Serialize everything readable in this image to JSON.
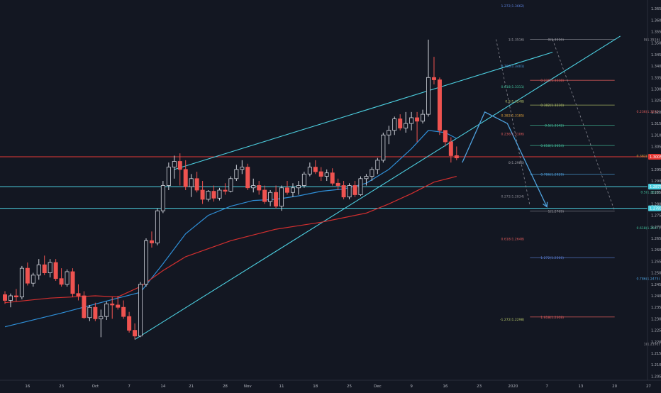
{
  "chart_data": {
    "type": "candlestick",
    "x_axis": {
      "labels": [
        "16",
        "23",
        "Oct",
        "7",
        "14",
        "21",
        "28",
        "Nov",
        "11",
        "18",
        "25",
        "Dec",
        "9",
        "16",
        "23",
        "2020",
        "7",
        "13",
        "20",
        "27"
      ]
    },
    "y_axis": {
      "range": [
        1.2045,
        1.3675
      ],
      "ticks": [
        "1.3650",
        "1.3600",
        "1.3550",
        "1.3500",
        "1.3450",
        "1.3400",
        "1.3350",
        "1.3300",
        "1.3250",
        "1.3200",
        "1.3150",
        "1.3100",
        "1.3050",
        "1.3000",
        "1.2950",
        "1.2900",
        "1.2850",
        "1.2800",
        "1.2750",
        "1.2700",
        "1.2650",
        "1.2600",
        "1.2550",
        "1.2500",
        "1.2450",
        "1.2400",
        "1.2350",
        "1.2300",
        "1.2250",
        "1.2200",
        "1.2150",
        "1.2100",
        "1.2050"
      ]
    },
    "price_badges": [
      {
        "value": 1.3005,
        "label": "1.3005",
        "color": "#e53935"
      },
      {
        "value": 1.2875,
        "label": "1.2875",
        "color": "#4dd0e1"
      },
      {
        "value": 1.2781,
        "label": "1.2781",
        "color": "#4dd0e1"
      }
    ],
    "horizontal_lines": [
      {
        "value": 1.3005,
        "color": "#e53935"
      },
      {
        "value": 1.2875,
        "color": "#4dd0e1"
      },
      {
        "value": 1.2781,
        "color": "#4dd0e1"
      }
    ],
    "candles": [
      [
        0,
        1.2405,
        1.242,
        1.2365,
        1.238
      ],
      [
        1,
        1.238,
        1.241,
        1.235,
        1.24
      ],
      [
        2,
        1.24,
        1.243,
        1.2375,
        1.2395
      ],
      [
        3,
        1.2395,
        1.253,
        1.2385,
        1.252
      ],
      [
        4,
        1.252,
        1.2545,
        1.2445,
        1.2455
      ],
      [
        5,
        1.2455,
        1.25,
        1.244,
        1.249
      ],
      [
        6,
        1.249,
        1.256,
        1.247,
        1.2535
      ],
      [
        7,
        1.2535,
        1.2575,
        1.249,
        1.25
      ],
      [
        8,
        1.25,
        1.256,
        1.248,
        1.2545
      ],
      [
        9,
        1.2545,
        1.256,
        1.2465,
        1.2475
      ],
      [
        10,
        1.2475,
        1.252,
        1.244,
        1.245
      ],
      [
        11,
        1.245,
        1.2515,
        1.244,
        1.2505
      ],
      [
        12,
        1.2505,
        1.252,
        1.2395,
        1.241
      ],
      [
        13,
        1.241,
        1.245,
        1.238,
        1.24
      ],
      [
        14,
        1.24,
        1.242,
        1.23,
        1.2305
      ],
      [
        15,
        1.2305,
        1.236,
        1.229,
        1.235
      ],
      [
        16,
        1.235,
        1.237,
        1.229,
        1.23
      ],
      [
        17,
        1.23,
        1.234,
        1.222,
        1.231
      ],
      [
        18,
        1.231,
        1.2375,
        1.2295,
        1.2365
      ],
      [
        19,
        1.2365,
        1.2395,
        1.23,
        1.236
      ],
      [
        20,
        1.236,
        1.24,
        1.234,
        1.235
      ],
      [
        21,
        1.235,
        1.238,
        1.23,
        1.231
      ],
      [
        22,
        1.231,
        1.233,
        1.224,
        1.225
      ],
      [
        23,
        1.225,
        1.228,
        1.221,
        1.2225
      ],
      [
        24,
        1.2225,
        1.246,
        1.222,
        1.245
      ],
      [
        25,
        1.245,
        1.265,
        1.244,
        1.264
      ],
      [
        26,
        1.264,
        1.268,
        1.261,
        1.263
      ],
      [
        27,
        1.263,
        1.278,
        1.262,
        1.277
      ],
      [
        28,
        1.277,
        1.29,
        1.276,
        1.288
      ],
      [
        29,
        1.288,
        1.298,
        1.286,
        1.296
      ],
      [
        30,
        1.296,
        1.301,
        1.291,
        1.2985
      ],
      [
        31,
        1.2985,
        1.302,
        1.288,
        1.295
      ],
      [
        32,
        1.295,
        1.299,
        1.286,
        1.2875
      ],
      [
        33,
        1.2875,
        1.293,
        1.283,
        1.291
      ],
      [
        34,
        1.291,
        1.294,
        1.285,
        1.286
      ],
      [
        35,
        1.286,
        1.29,
        1.28,
        1.282
      ],
      [
        36,
        1.282,
        1.286,
        1.281,
        1.2855
      ],
      [
        37,
        1.2855,
        1.288,
        1.281,
        1.2825
      ],
      [
        38,
        1.2825,
        1.287,
        1.2815,
        1.286
      ],
      [
        39,
        1.286,
        1.289,
        1.284,
        1.2855
      ],
      [
        40,
        1.2855,
        1.292,
        1.285,
        1.291
      ],
      [
        41,
        1.291,
        1.297,
        1.29,
        1.295
      ],
      [
        42,
        1.295,
        1.299,
        1.293,
        1.296
      ],
      [
        43,
        1.296,
        1.2975,
        1.286,
        1.287
      ],
      [
        44,
        1.287,
        1.291,
        1.285,
        1.288
      ],
      [
        45,
        1.288,
        1.29,
        1.284,
        1.286
      ],
      [
        46,
        1.286,
        1.288,
        1.28,
        1.281
      ],
      [
        47,
        1.281,
        1.286,
        1.279,
        1.285
      ],
      [
        48,
        1.285,
        1.288,
        1.278,
        1.279
      ],
      [
        49,
        1.279,
        1.288,
        1.277,
        1.287
      ],
      [
        50,
        1.287,
        1.29,
        1.284,
        1.285
      ],
      [
        51,
        1.285,
        1.289,
        1.283,
        1.287
      ],
      [
        52,
        1.287,
        1.29,
        1.284,
        1.288
      ],
      [
        53,
        1.288,
        1.294,
        1.287,
        1.293
      ],
      [
        54,
        1.293,
        1.298,
        1.292,
        1.296
      ],
      [
        55,
        1.296,
        1.299,
        1.293,
        1.294
      ],
      [
        56,
        1.294,
        1.296,
        1.29,
        1.292
      ],
      [
        57,
        1.292,
        1.295,
        1.29,
        1.2935
      ],
      [
        58,
        1.2935,
        1.2955,
        1.288,
        1.289
      ],
      [
        59,
        1.289,
        1.291,
        1.286,
        1.288
      ],
      [
        60,
        1.288,
        1.29,
        1.282,
        1.283
      ],
      [
        61,
        1.283,
        1.289,
        1.282,
        1.288
      ],
      [
        62,
        1.288,
        1.29,
        1.283,
        1.284
      ],
      [
        63,
        1.284,
        1.292,
        1.2835,
        1.291
      ],
      [
        64,
        1.291,
        1.293,
        1.288,
        1.292
      ],
      [
        65,
        1.292,
        1.296,
        1.29,
        1.295
      ],
      [
        66,
        1.295,
        1.3,
        1.293,
        1.299
      ],
      [
        67,
        1.299,
        1.311,
        1.298,
        1.31
      ],
      [
        68,
        1.31,
        1.314,
        1.306,
        1.312
      ],
      [
        69,
        1.312,
        1.318,
        1.31,
        1.317
      ],
      [
        70,
        1.317,
        1.319,
        1.312,
        1.313
      ],
      [
        71,
        1.313,
        1.32,
        1.311,
        1.315
      ],
      [
        72,
        1.315,
        1.32,
        1.312,
        1.3175
      ],
      [
        73,
        1.3175,
        1.32,
        1.307,
        1.316
      ],
      [
        74,
        1.316,
        1.321,
        1.315,
        1.319
      ],
      [
        75,
        1.319,
        1.3515,
        1.318,
        1.335
      ],
      [
        76,
        1.335,
        1.344,
        1.332,
        1.334
      ],
      [
        77,
        1.334,
        1.335,
        1.31,
        1.312
      ],
      [
        78,
        1.312,
        1.312,
        1.305,
        1.307
      ],
      [
        79,
        1.307,
        1.309,
        1.298,
        1.301
      ],
      [
        80,
        1.301,
        1.305,
        1.299,
        1.3
      ]
    ],
    "moving_averages": [
      {
        "color": "#2f8fd8",
        "points": [
          [
            0,
            1.2265
          ],
          [
            10,
            1.2325
          ],
          [
            20,
            1.239
          ],
          [
            24,
            1.2415
          ],
          [
            28,
            1.254
          ],
          [
            32,
            1.267
          ],
          [
            36,
            1.275
          ],
          [
            40,
            1.279
          ],
          [
            44,
            1.2815
          ],
          [
            48,
            1.282
          ],
          [
            52,
            1.2835
          ],
          [
            56,
            1.2855
          ],
          [
            60,
            1.2865
          ],
          [
            64,
            1.289
          ],
          [
            68,
            1.295
          ],
          [
            72,
            1.304
          ],
          [
            75,
            1.312
          ],
          [
            78,
            1.311
          ],
          [
            80,
            1.3085
          ]
        ]
      },
      {
        "color": "#d32f2f",
        "points": [
          [
            0,
            1.237
          ],
          [
            8,
            1.239
          ],
          [
            16,
            1.24
          ],
          [
            20,
            1.2395
          ],
          [
            24,
            1.244
          ],
          [
            28,
            1.251
          ],
          [
            32,
            1.257
          ],
          [
            36,
            1.2605
          ],
          [
            40,
            1.264
          ],
          [
            44,
            1.2665
          ],
          [
            48,
            1.269
          ],
          [
            52,
            1.2705
          ],
          [
            56,
            1.272
          ],
          [
            60,
            1.274
          ],
          [
            64,
            1.276
          ],
          [
            68,
            1.28
          ],
          [
            72,
            1.2845
          ],
          [
            76,
            1.2895
          ],
          [
            80,
            1.292
          ]
        ]
      }
    ],
    "trend_lines": [
      {
        "color": "#4dd0e1",
        "from": [
          30,
          1.295
        ],
        "to": [
          97,
          1.346
        ]
      },
      {
        "color": "#4dd0e1",
        "from": [
          23,
          1.221
        ],
        "to": [
          109,
          1.353
        ]
      }
    ],
    "arrows": [
      {
        "color": "#4fa3e0",
        "points": [
          [
            81,
            1.298
          ],
          [
            85,
            1.32
          ],
          [
            89,
            1.315
          ],
          [
            96,
            1.2787
          ]
        ]
      }
    ],
    "fib_labels": [
      {
        "text": "1.272(1.3662)",
        "x": 92,
        "value": 1.3662,
        "color": "#5b7fd8"
      },
      {
        "text": "1(1.3516)",
        "x": 92,
        "value": 1.3516,
        "color": "#a0a0a8"
      },
      {
        "text": "0.786(1.3401)",
        "x": 92,
        "value": 1.3401,
        "color": "#4fa3e0"
      },
      {
        "text": "0.618(1.3311)",
        "x": 92,
        "value": 1.3311,
        "color": "#43c59e"
      },
      {
        "text": "0.5(1.3248)",
        "x": 92,
        "value": 1.3248,
        "color": "#b5c56a"
      },
      {
        "text": "0.382(1.3185)",
        "x": 92,
        "value": 1.3185,
        "color": "#e0a33a"
      },
      {
        "text": "0.236(1.3106)",
        "x": 92,
        "value": 1.3106,
        "color": "#e05c5c"
      },
      {
        "text": "0(1.2980)",
        "x": 92,
        "value": 1.298,
        "color": "#a0a0a8"
      },
      {
        "text": "0.272(1.2834)",
        "x": 92,
        "value": 1.2834,
        "color": "#8a8a94"
      },
      {
        "text": "0.618(1.2648)",
        "x": 92,
        "value": 1.2648,
        "color": "#e05c5c"
      },
      {
        "text": "-1.272(1.2298)",
        "x": 92,
        "value": 1.2298,
        "color": "#b5c56a"
      },
      {
        "text": "0(1.3516)",
        "x": 99,
        "value": 1.3516,
        "color": "#a0a0a8"
      },
      {
        "text": "0.236(1.3338)",
        "x": 99,
        "value": 1.3338,
        "color": "#e05c5c"
      },
      {
        "text": "0.382(1.3230)",
        "x": 99,
        "value": 1.323,
        "color": "#b5c56a"
      },
      {
        "text": "0.5(1.3142)",
        "x": 99,
        "value": 1.3142,
        "color": "#43c59e"
      },
      {
        "text": "0.618(1.3054)",
        "x": 99,
        "value": 1.3054,
        "color": "#43c59e"
      },
      {
        "text": "0.786(1.2929)",
        "x": 99,
        "value": 1.2929,
        "color": "#4fa3e0"
      },
      {
        "text": "1(1.2769)",
        "x": 99,
        "value": 1.2769,
        "color": "#a0a0a8"
      },
      {
        "text": "1.272(1.2566)",
        "x": 99,
        "value": 1.2566,
        "color": "#5b7fd8"
      },
      {
        "text": "1.618(1.2308)",
        "x": 99,
        "value": 1.2308,
        "color": "#e05c5c"
      },
      {
        "text": "0(1.3516)",
        "x": 116,
        "value": 1.3516,
        "color": "#a0a0a8"
      },
      {
        "text": "0.236(1.3202)",
        "x": 116,
        "value": 1.3202,
        "color": "#e05c5c"
      },
      {
        "text": "0.382(1.3009)",
        "x": 116,
        "value": 1.3009,
        "color": "#e0a33a"
      },
      {
        "text": "0.5(1.2852)",
        "x": 116,
        "value": 1.2852,
        "color": "#43c59e"
      },
      {
        "text": "0.618(1.2697)",
        "x": 116,
        "value": 1.2697,
        "color": "#43c59e"
      },
      {
        "text": "0.786(1.2475)",
        "x": 116,
        "value": 1.2475,
        "color": "#4fa3e0"
      },
      {
        "text": "1(1.2192)",
        "x": 116,
        "value": 1.2192,
        "color": "#a0a0a8"
      }
    ],
    "fib_lines": [
      {
        "x1": 93,
        "x2": 108,
        "value": 1.3516,
        "color": "#8a8a94"
      },
      {
        "x1": 93,
        "x2": 108,
        "value": 1.3338,
        "color": "#e05c5c"
      },
      {
        "x1": 93,
        "x2": 108,
        "value": 1.323,
        "color": "#b5c56a"
      },
      {
        "x1": 93,
        "x2": 108,
        "value": 1.3142,
        "color": "#43c59e"
      },
      {
        "x1": 93,
        "x2": 108,
        "value": 1.3054,
        "color": "#43c59e"
      },
      {
        "x1": 93,
        "x2": 108,
        "value": 1.2929,
        "color": "#4fa3e0"
      },
      {
        "x1": 93,
        "x2": 108,
        "value": 1.2769,
        "color": "#8a8a94"
      },
      {
        "x1": 93,
        "x2": 108,
        "value": 1.2566,
        "color": "#5b7fd8"
      },
      {
        "x1": 93,
        "x2": 108,
        "value": 1.2308,
        "color": "#e05c5c"
      }
    ],
    "dashed_lines": [
      {
        "from": [
          87,
          1.3516
        ],
        "to": [
          93,
          1.279
        ],
        "color": "#8a8a94"
      },
      {
        "from": [
          97,
          1.3516
        ],
        "to": [
          108,
          1.2769
        ],
        "color": "#8a8a94"
      }
    ]
  }
}
